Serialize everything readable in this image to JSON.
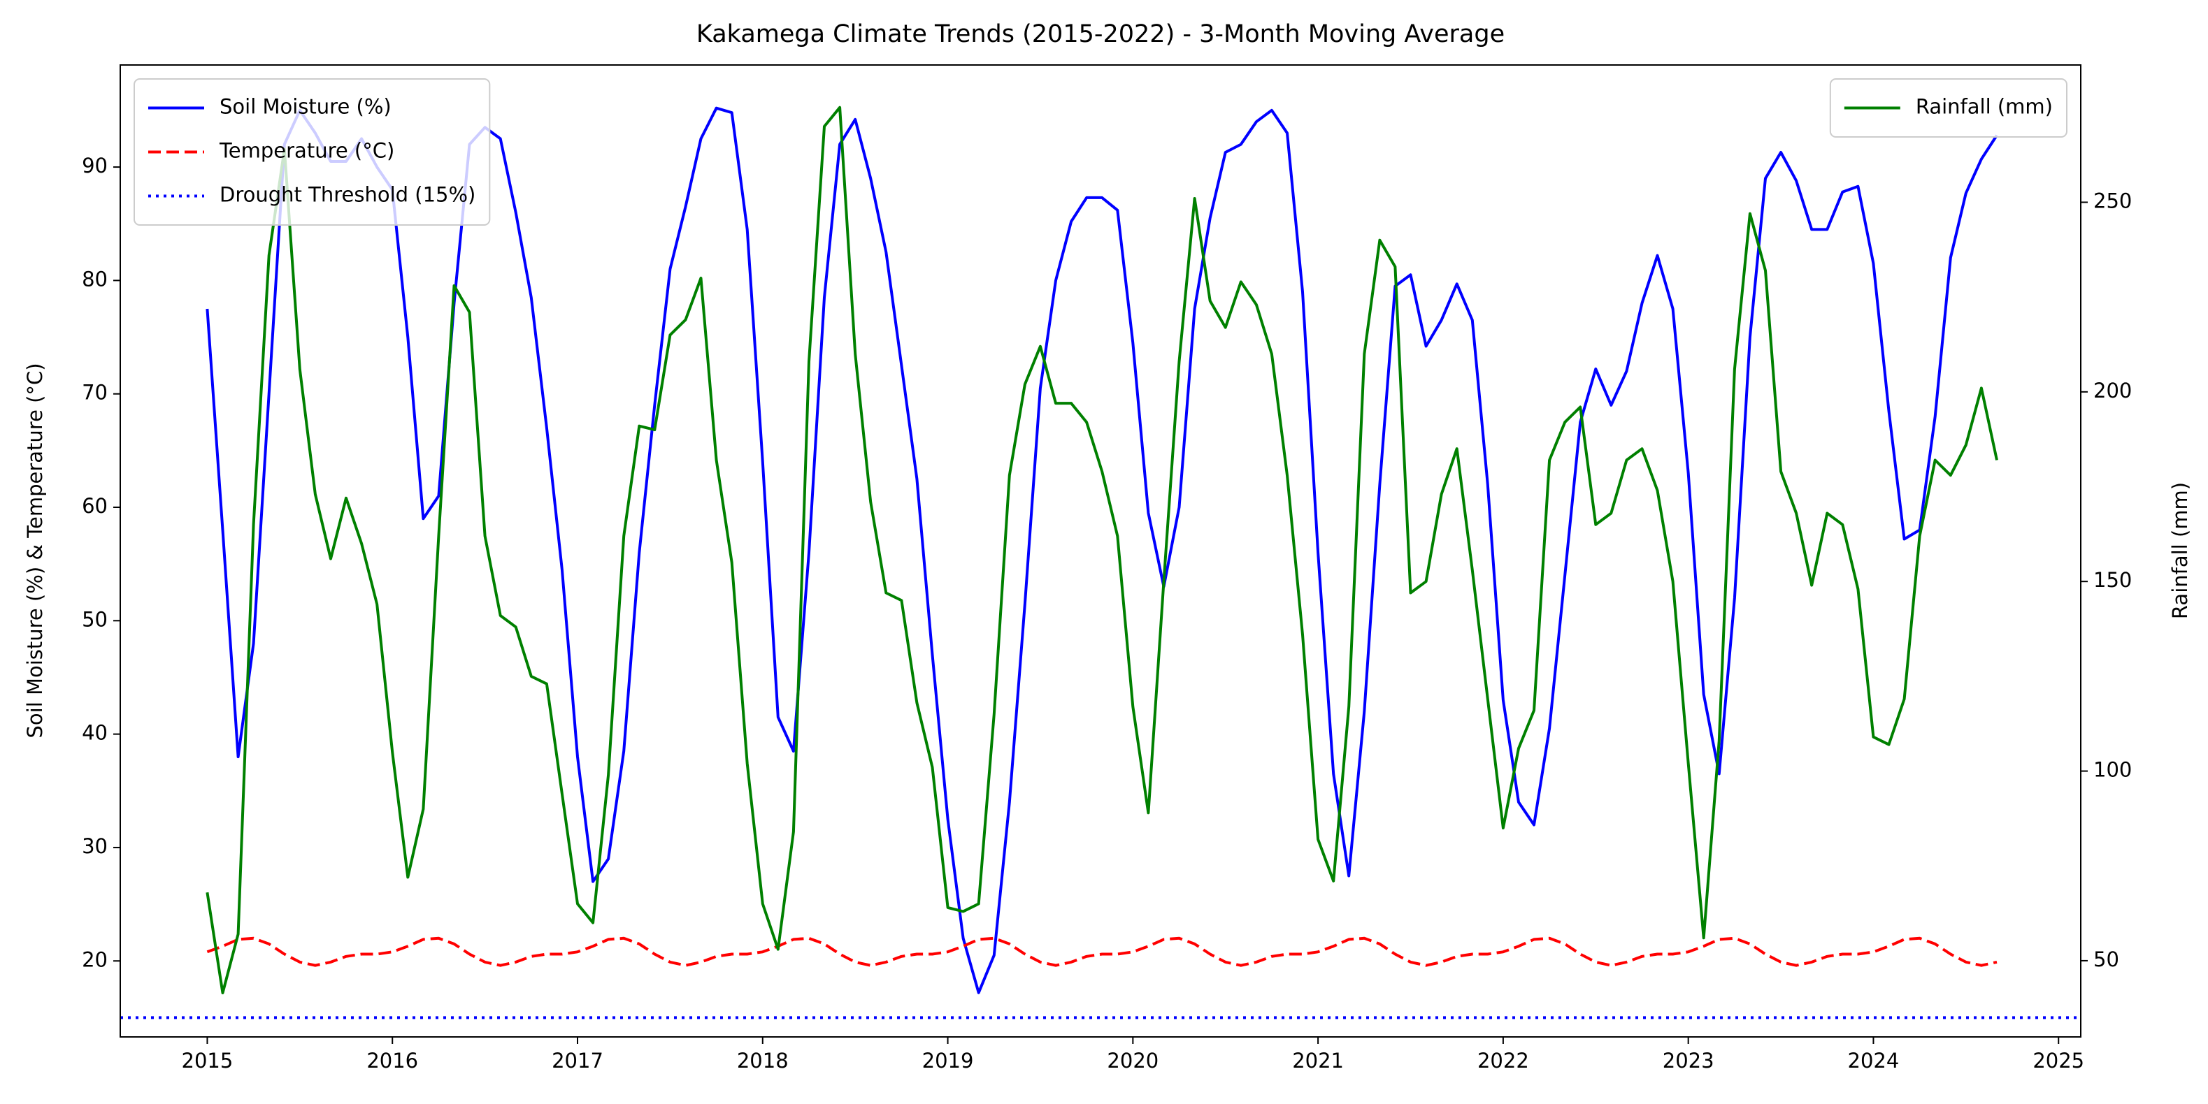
{
  "chart_data": {
    "type": "line",
    "title": "Kakamega Climate Trends (2015-2022) - 3-Month Moving Average",
    "ylabel": "Soil Moisture (%) & Temperature (°C)",
    "y2label": "Rainfall (mm)",
    "x": [
      "2015-01",
      "2015-02",
      "2015-03",
      "2015-04",
      "2015-05",
      "2015-06",
      "2015-07",
      "2015-08",
      "2015-09",
      "2015-10",
      "2015-11",
      "2015-12",
      "2016-01",
      "2016-02",
      "2016-03",
      "2016-04",
      "2016-05",
      "2016-06",
      "2016-07",
      "2016-08",
      "2016-09",
      "2016-10",
      "2016-11",
      "2016-12",
      "2017-01",
      "2017-02",
      "2017-03",
      "2017-04",
      "2017-05",
      "2017-06",
      "2017-07",
      "2017-08",
      "2017-09",
      "2017-10",
      "2017-11",
      "2017-12",
      "2018-01",
      "2018-02",
      "2018-03",
      "2018-04",
      "2018-05",
      "2018-06",
      "2018-07",
      "2018-08",
      "2018-09",
      "2018-10",
      "2018-11",
      "2018-12",
      "2019-01",
      "2019-02",
      "2019-03",
      "2019-04",
      "2019-05",
      "2019-06",
      "2019-07",
      "2019-08",
      "2019-09",
      "2019-10",
      "2019-11",
      "2019-12",
      "2020-01",
      "2020-02",
      "2020-03",
      "2020-04",
      "2020-05",
      "2020-06",
      "2020-07",
      "2020-08",
      "2020-09",
      "2020-10",
      "2020-11",
      "2020-12",
      "2021-01",
      "2021-02",
      "2021-03",
      "2021-04",
      "2021-05",
      "2021-06",
      "2021-07",
      "2021-08",
      "2021-09",
      "2021-10",
      "2021-11",
      "2021-12",
      "2022-01",
      "2022-02",
      "2022-03",
      "2022-04",
      "2022-05",
      "2022-06",
      "2022-07",
      "2022-08",
      "2022-09",
      "2022-10",
      "2022-11",
      "2022-12",
      "2023-01",
      "2023-02",
      "2023-03",
      "2023-04",
      "2023-05",
      "2023-06",
      "2023-07",
      "2023-08",
      "2023-09",
      "2023-10",
      "2023-11",
      "2023-12",
      "2024-01",
      "2024-02",
      "2024-03",
      "2024-04",
      "2024-05",
      "2024-06",
      "2024-07",
      "2024-08",
      "2024-09"
    ],
    "series": [
      {
        "name": "Soil Moisture (%)",
        "color": "blue",
        "linestyle": "solid",
        "axis": "y",
        "values": [
          77.5,
          58,
          38,
          48,
          70,
          92,
          95,
          93,
          90.5,
          90.5,
          92.5,
          90,
          88,
          75,
          59,
          61,
          78,
          92,
          93.5,
          92.5,
          86,
          78.5,
          67,
          54.5,
          38,
          27,
          29,
          38.5,
          56,
          69,
          81,
          86.5,
          92.5,
          95.2,
          94.8,
          84.5,
          64,
          41.5,
          38.5,
          56,
          78.5,
          92,
          94.2,
          89,
          82.5,
          72.5,
          62.5,
          47,
          32.5,
          22,
          17.2,
          20.5,
          34,
          51.5,
          70.5,
          80,
          85.2,
          87.3,
          87.3,
          86.2,
          74.5,
          59.5,
          53,
          60,
          77.5,
          85.5,
          91.3,
          92,
          94,
          95,
          93,
          79,
          56,
          36.5,
          27.5,
          42,
          62,
          79.5,
          80.5,
          74.2,
          76.5,
          79.7,
          76.5,
          62,
          43,
          34,
          32,
          40.5,
          54,
          67.5,
          72.2,
          69,
          72,
          78,
          82.2,
          77.5,
          63,
          43.5,
          36.5,
          52,
          75,
          89,
          91.3,
          88.8,
          84.5,
          84.5,
          87.8,
          88.3,
          81.5,
          68.5,
          57.2,
          58,
          68,
          82,
          87.7,
          90.7,
          92.8
        ]
      },
      {
        "name": "Temperature (°C)",
        "color": "red",
        "linestyle": "dashed",
        "axis": "y",
        "values": [
          20.8,
          21.3,
          21.9,
          22,
          21.5,
          20.6,
          19.9,
          19.6,
          19.9,
          20.4,
          20.6,
          20.6,
          20.8,
          21.3,
          21.9,
          22,
          21.5,
          20.6,
          19.9,
          19.6,
          19.9,
          20.4,
          20.6,
          20.6,
          20.8,
          21.3,
          21.9,
          22,
          21.5,
          20.6,
          19.9,
          19.6,
          19.9,
          20.4,
          20.6,
          20.6,
          20.8,
          21.3,
          21.9,
          22,
          21.5,
          20.6,
          19.9,
          19.6,
          19.9,
          20.4,
          20.6,
          20.6,
          20.8,
          21.3,
          21.9,
          22,
          21.5,
          20.6,
          19.9,
          19.6,
          19.9,
          20.4,
          20.6,
          20.6,
          20.8,
          21.3,
          21.9,
          22,
          21.5,
          20.6,
          19.9,
          19.6,
          19.9,
          20.4,
          20.6,
          20.6,
          20.8,
          21.3,
          21.9,
          22,
          21.5,
          20.6,
          19.9,
          19.6,
          19.9,
          20.4,
          20.6,
          20.6,
          20.8,
          21.3,
          21.9,
          22,
          21.5,
          20.6,
          19.9,
          19.6,
          19.9,
          20.4,
          20.6,
          20.6,
          20.8,
          21.3,
          21.9,
          22,
          21.5,
          20.6,
          19.9,
          19.6,
          19.9,
          20.4,
          20.6,
          20.6,
          20.8,
          21.3,
          21.9,
          22,
          21.5,
          20.6,
          19.9,
          19.6,
          19.9
        ]
      },
      {
        "name": "Rainfall (mm)",
        "color": "green",
        "linestyle": "solid",
        "axis": "y2",
        "values": [
          68,
          41.5,
          57,
          165,
          236,
          264,
          206,
          173,
          156,
          172,
          160,
          144,
          105,
          72,
          90,
          162,
          228,
          221,
          162,
          141,
          138,
          125,
          123,
          94,
          65,
          60,
          99,
          162,
          191,
          190,
          215,
          219,
          230,
          182,
          155,
          102,
          65,
          53,
          84,
          208,
          270,
          275,
          210,
          171,
          147,
          145,
          118,
          101,
          64,
          63,
          65,
          115,
          178,
          202,
          212,
          197,
          197,
          192,
          179,
          162,
          117,
          89,
          150,
          208,
          251,
          224,
          217,
          229,
          223,
          210,
          178,
          136,
          82,
          71,
          117,
          210,
          240,
          233,
          147,
          150,
          173,
          185,
          153,
          119,
          85,
          106,
          116,
          182,
          192,
          196,
          165,
          168,
          182,
          185,
          174,
          150,
          102,
          56,
          108,
          206,
          247,
          232,
          179,
          168,
          149,
          168,
          165,
          148,
          109,
          107,
          119,
          162,
          182,
          178,
          186,
          201,
          182
        ]
      }
    ],
    "threshold": {
      "name": "Drought Threshold (15%)",
      "value": 15,
      "color": "blue",
      "linestyle": "dotted"
    },
    "xlim": [
      2014.53,
      2025.12
    ],
    "xticks": [
      2015,
      2016,
      2017,
      2018,
      2019,
      2020,
      2021,
      2022,
      2023,
      2024,
      2025
    ],
    "ylim": [
      13.3,
      99.0
    ],
    "yticks": [
      20,
      30,
      40,
      50,
      60,
      70,
      80,
      90
    ],
    "y2lim": [
      29.9,
      286.2
    ],
    "y2ticks": [
      50,
      100,
      150,
      200,
      250
    ],
    "legend": "upper left",
    "legend2": "upper right",
    "grid": false
  }
}
